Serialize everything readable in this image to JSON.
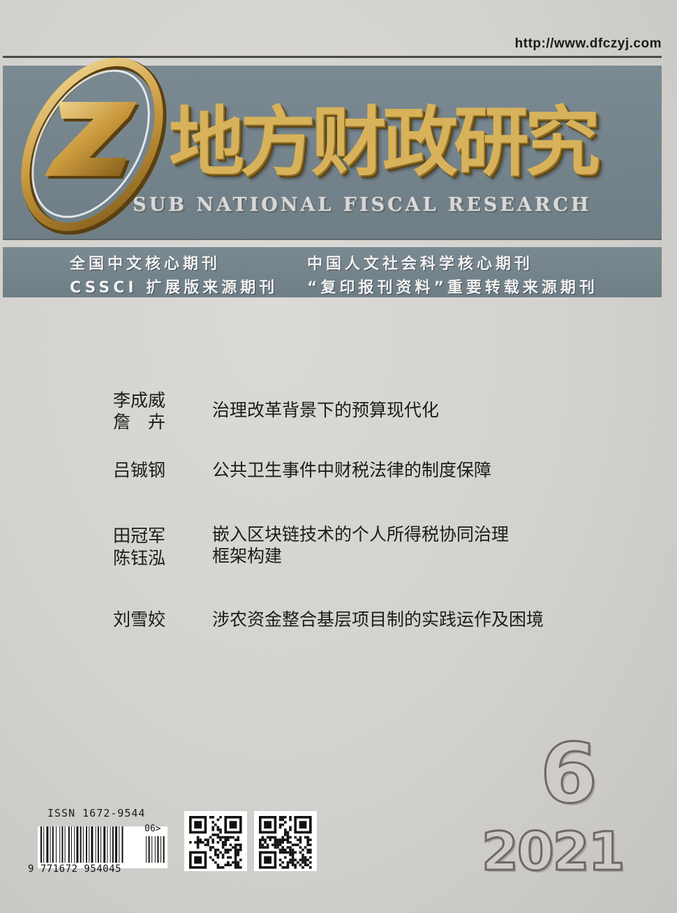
{
  "header": {
    "url": "http://www.dfczyj.com"
  },
  "masthead": {
    "title_cn": "地方财政研究",
    "title_en": "SUB NATIONAL FISCAL RESEARCH"
  },
  "tags": {
    "left_1": "全国中文核心期刊",
    "left_2": "CSSCI 扩展版来源期刊",
    "right_1": "中国人文社会科学核心期刊",
    "right_2": "“复印报刊资料”重要转载来源期刊"
  },
  "articles": [
    {
      "author_1": "李成威",
      "author_2": "詹　卉",
      "title_1": "治理改革背景下的预算现代化",
      "title_2": ""
    },
    {
      "author_1": "吕铖钢",
      "author_2": "",
      "title_1": "公共卫生事件中财税法律的制度保障",
      "title_2": ""
    },
    {
      "author_1": "田冠军",
      "author_2": "陈钰泓",
      "title_1": "嵌入区块链技术的个人所得税协同治理",
      "title_2": "框架构建"
    },
    {
      "author_1": "刘雪姣",
      "author_2": "",
      "title_1": "涉农资金整合基层项目制的实践运作及困境",
      "title_2": ""
    }
  ],
  "issue": {
    "number": "6",
    "year": "2021"
  },
  "barcode": {
    "issn": "ISSN 1672-9544",
    "digits": "9 771672 954045",
    "addon": "06>"
  },
  "icons": {
    "logo": "cz-ring-logo-icon",
    "qr_1": "qr-code-icon",
    "qr_2": "qr-code-icon"
  }
}
